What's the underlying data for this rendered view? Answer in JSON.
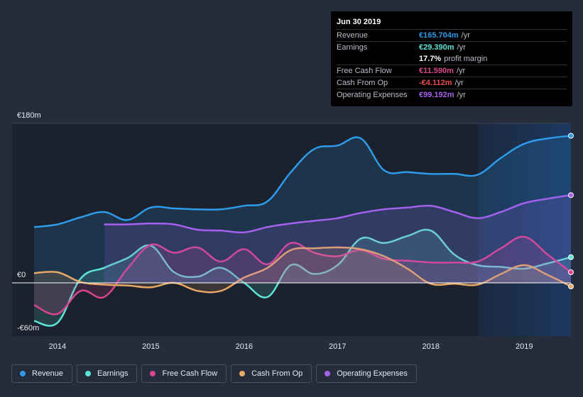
{
  "tooltip": {
    "date": "Jun 30 2019",
    "rows": [
      {
        "label": "Revenue",
        "value": "€165.704m",
        "unit": "/yr",
        "color": "#2e9bea"
      },
      {
        "label": "Earnings",
        "value": "€29.390m",
        "unit": "/yr",
        "color": "#5fe3d4"
      },
      {
        "label": "",
        "value": "17.7%",
        "unit": "profit margin",
        "color": "#ffffff"
      },
      {
        "label": "Free Cash Flow",
        "value": "€11.590m",
        "unit": "/yr",
        "color": "#d9458e"
      },
      {
        "label": "Cash From Op",
        "value": "-€4.112m",
        "unit": "/yr",
        "color": "#ee4c4c"
      },
      {
        "label": "Operating Expenses",
        "value": "€99.192m",
        "unit": "/yr",
        "color": "#a461ee"
      }
    ]
  },
  "legend": [
    {
      "label": "Revenue",
      "color": "#2e9bea"
    },
    {
      "label": "Earnings",
      "color": "#5fe3d4"
    },
    {
      "label": "Free Cash Flow",
      "color": "#d9458e"
    },
    {
      "label": "Cash From Op",
      "color": "#e8a866"
    },
    {
      "label": "Operating Expenses",
      "color": "#a461ee"
    }
  ],
  "chart_data": {
    "type": "area",
    "title": "",
    "xlabel": "",
    "ylabel": "",
    "y_tick_labels": [
      "€180m",
      "€0",
      "-€60m"
    ],
    "x_tick_labels": [
      "2014",
      "2015",
      "2016",
      "2017",
      "2018",
      "2019"
    ],
    "xlim": [
      2013.7,
      2019.5
    ],
    "ylim": [
      -60,
      180
    ],
    "grid": false,
    "legend_position": "bottom",
    "series": [
      {
        "name": "Revenue",
        "color": "#2e9bea",
        "points": [
          [
            2013.75,
            63
          ],
          [
            2014.0,
            66
          ],
          [
            2014.25,
            74
          ],
          [
            2014.5,
            80
          ],
          [
            2014.75,
            71
          ],
          [
            2015.0,
            85
          ],
          [
            2015.25,
            84
          ],
          [
            2015.5,
            83
          ],
          [
            2015.75,
            83
          ],
          [
            2016.0,
            87
          ],
          [
            2016.25,
            92
          ],
          [
            2016.5,
            125
          ],
          [
            2016.75,
            151
          ],
          [
            2017.0,
            155
          ],
          [
            2017.25,
            163
          ],
          [
            2017.5,
            127
          ],
          [
            2017.75,
            125
          ],
          [
            2018.0,
            123
          ],
          [
            2018.25,
            123
          ],
          [
            2018.5,
            122
          ],
          [
            2018.75,
            141
          ],
          [
            2019.0,
            157
          ],
          [
            2019.25,
            163
          ],
          [
            2019.5,
            166
          ]
        ]
      },
      {
        "name": "Earnings",
        "color": "#5fe3d4",
        "points": [
          [
            2013.75,
            -43
          ],
          [
            2014.0,
            -45
          ],
          [
            2014.25,
            5
          ],
          [
            2014.5,
            17
          ],
          [
            2014.75,
            28
          ],
          [
            2015.0,
            42
          ],
          [
            2015.25,
            12
          ],
          [
            2015.5,
            7
          ],
          [
            2015.75,
            17
          ],
          [
            2016.0,
            0
          ],
          [
            2016.25,
            -16
          ],
          [
            2016.5,
            20
          ],
          [
            2016.75,
            10
          ],
          [
            2017.0,
            20
          ],
          [
            2017.25,
            50
          ],
          [
            2017.5,
            45
          ],
          [
            2017.75,
            53
          ],
          [
            2018.0,
            59
          ],
          [
            2018.25,
            32
          ],
          [
            2018.5,
            20
          ],
          [
            2018.75,
            18
          ],
          [
            2019.0,
            16
          ],
          [
            2019.25,
            22
          ],
          [
            2019.5,
            29
          ]
        ]
      },
      {
        "name": "Free Cash Flow",
        "color": "#d9458e",
        "points": [
          [
            2013.75,
            -25
          ],
          [
            2014.0,
            -35
          ],
          [
            2014.25,
            -9
          ],
          [
            2014.5,
            -16
          ],
          [
            2014.75,
            16
          ],
          [
            2015.0,
            43
          ],
          [
            2015.25,
            34
          ],
          [
            2015.5,
            40
          ],
          [
            2015.75,
            24
          ],
          [
            2016.0,
            38
          ],
          [
            2016.25,
            21
          ],
          [
            2016.5,
            45
          ],
          [
            2016.75,
            34
          ],
          [
            2017.0,
            30
          ],
          [
            2017.25,
            37
          ],
          [
            2017.5,
            27
          ],
          [
            2017.75,
            25
          ],
          [
            2018.0,
            23
          ],
          [
            2018.25,
            23
          ],
          [
            2018.5,
            24
          ],
          [
            2018.75,
            39
          ],
          [
            2019.0,
            52
          ],
          [
            2019.25,
            32
          ],
          [
            2019.5,
            12
          ]
        ]
      },
      {
        "name": "Cash From Op",
        "color": "#e8a866",
        "points": [
          [
            2013.75,
            11
          ],
          [
            2014.0,
            12
          ],
          [
            2014.25,
            1
          ],
          [
            2014.5,
            -2
          ],
          [
            2014.75,
            -3
          ],
          [
            2015.0,
            -5
          ],
          [
            2015.25,
            0
          ],
          [
            2015.5,
            -9
          ],
          [
            2015.75,
            -9
          ],
          [
            2016.0,
            6
          ],
          [
            2016.25,
            17
          ],
          [
            2016.5,
            37
          ],
          [
            2016.75,
            39
          ],
          [
            2017.0,
            40
          ],
          [
            2017.25,
            38
          ],
          [
            2017.5,
            30
          ],
          [
            2017.75,
            16
          ],
          [
            2018.0,
            -1
          ],
          [
            2018.25,
            -1
          ],
          [
            2018.5,
            -2
          ],
          [
            2018.75,
            10
          ],
          [
            2019.0,
            20
          ],
          [
            2019.25,
            9
          ],
          [
            2019.5,
            -4
          ]
        ]
      },
      {
        "name": "Operating Expenses",
        "color": "#a461ee",
        "points": [
          [
            2014.5,
            66
          ],
          [
            2014.75,
            66
          ],
          [
            2015.0,
            67
          ],
          [
            2015.25,
            66
          ],
          [
            2015.5,
            60
          ],
          [
            2015.75,
            59
          ],
          [
            2016.0,
            57
          ],
          [
            2016.25,
            63
          ],
          [
            2016.5,
            67
          ],
          [
            2016.75,
            70
          ],
          [
            2017.0,
            73
          ],
          [
            2017.25,
            79
          ],
          [
            2017.5,
            83
          ],
          [
            2017.75,
            85
          ],
          [
            2018.0,
            87
          ],
          [
            2018.25,
            80
          ],
          [
            2018.5,
            73
          ],
          [
            2018.75,
            80
          ],
          [
            2019.0,
            90
          ],
          [
            2019.25,
            95
          ],
          [
            2019.5,
            99
          ]
        ]
      }
    ]
  }
}
